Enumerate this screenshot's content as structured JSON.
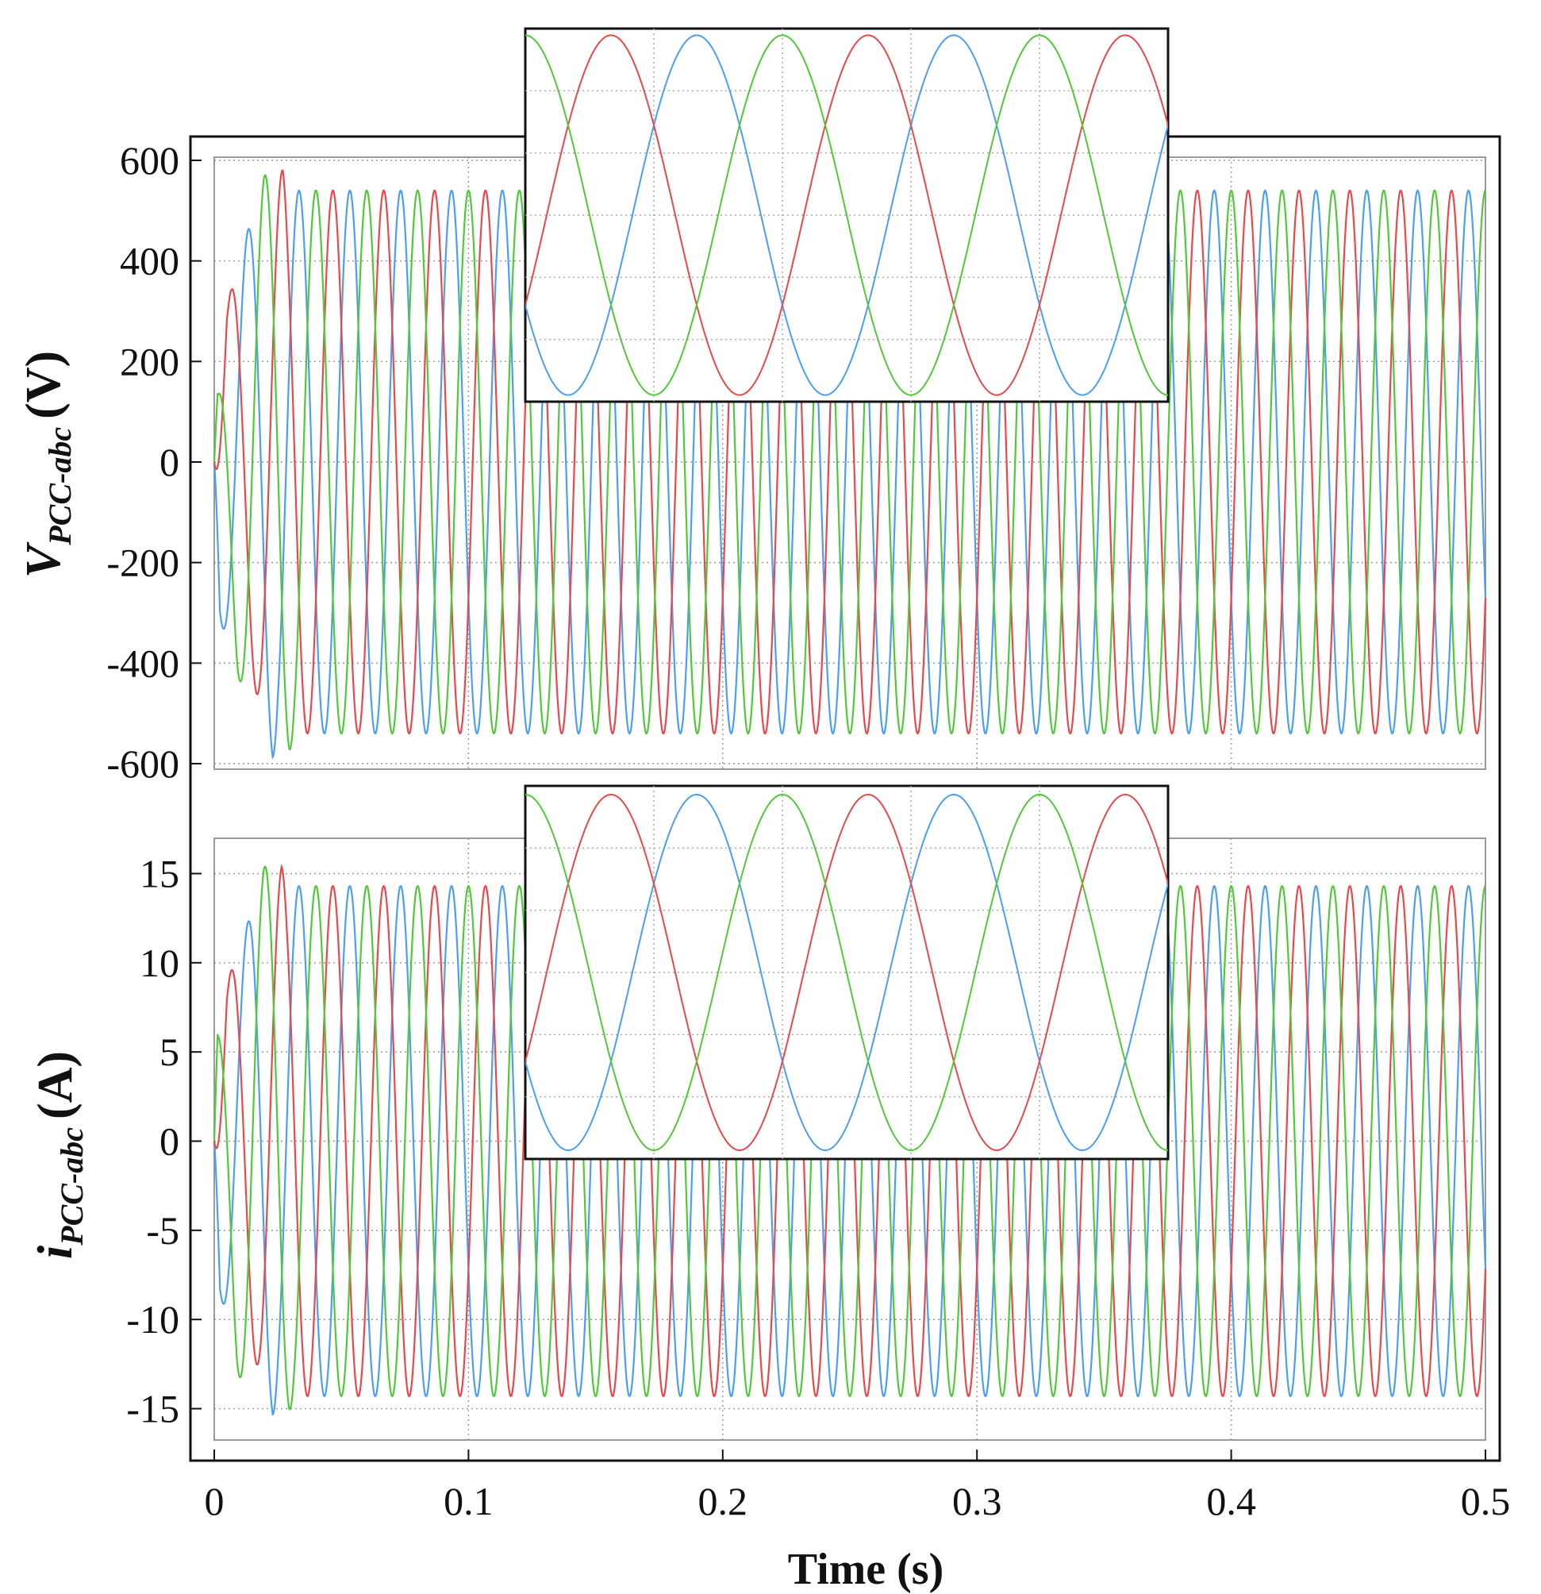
{
  "chart_data": {
    "type": "line",
    "x_range": [
      0,
      0.5
    ],
    "x_ticks": [
      "0",
      "0.1",
      "0.2",
      "0.3",
      "0.4",
      "0.5"
    ],
    "xlabel": "Time (s)",
    "frequency_hz": 50,
    "grid": true,
    "series_colors": [
      "#e8484a",
      "#4a9ff2",
      "#50c838"
    ],
    "panels": [
      {
        "ylabel_main": "V",
        "ylabel_sub": "PCC-abc",
        "ylabel_unit": "(V)",
        "ylim": [
          -600,
          600
        ],
        "y_ticks": [
          "600",
          "400",
          "200",
          "0",
          "-200",
          "-400",
          "-600"
        ],
        "steady_amplitude": 540,
        "phases": [
          {
            "phase_deg": -30,
            "startup_peaks": [
              {
                "t": 0.0055,
                "v": 328
              },
              {
                "t": 0.027,
                "v": 583
              }
            ]
          },
          {
            "phase_deg": -150,
            "startup_peaks": [
              {
                "t": 0.0025,
                "v": -318
              },
              {
                "t": 0.023,
                "v": -590
              }
            ]
          },
          {
            "phase_deg": 90,
            "startup_peaks": [
              {
                "t": 0.0015,
                "v": 150
              },
              {
                "t": 0.009,
                "v": -420
              },
              {
                "t": 0.0195,
                "v": 570
              },
              {
                "t": 0.0295,
                "v": -578
              }
            ]
          }
        ],
        "inset_window": {
          "t_start": 0.4,
          "t_end": 0.45,
          "y_range": [
            -560,
            560
          ]
        }
      },
      {
        "ylabel_main": "i",
        "ylabel_sub": "PCC-abc",
        "ylabel_unit": "(A)",
        "ylim": [
          -16,
          16
        ],
        "y_ticks": [
          "15",
          "10",
          "5",
          "0",
          "-5",
          "-10",
          "-15"
        ],
        "steady_amplitude": 14.3,
        "phases": [
          {
            "phase_deg": -30,
            "startup_peaks": [
              {
                "t": 0.0055,
                "v": 9.2
              },
              {
                "t": 0.0265,
                "v": 15.4
              }
            ]
          },
          {
            "phase_deg": -150,
            "startup_peaks": [
              {
                "t": 0.0025,
                "v": -8.8
              },
              {
                "t": 0.023,
                "v": -15.4
              }
            ]
          },
          {
            "phase_deg": 90,
            "startup_peaks": [
              {
                "t": 0.0015,
                "v": 6.6
              },
              {
                "t": 0.009,
                "v": -13
              },
              {
                "t": 0.0195,
                "v": 15.4
              },
              {
                "t": 0.0295,
                "v": -15.2
              }
            ]
          }
        ],
        "inset_window": {
          "t_start": 0.4,
          "t_end": 0.45,
          "y_range": [
            -15,
            15
          ]
        }
      }
    ]
  }
}
